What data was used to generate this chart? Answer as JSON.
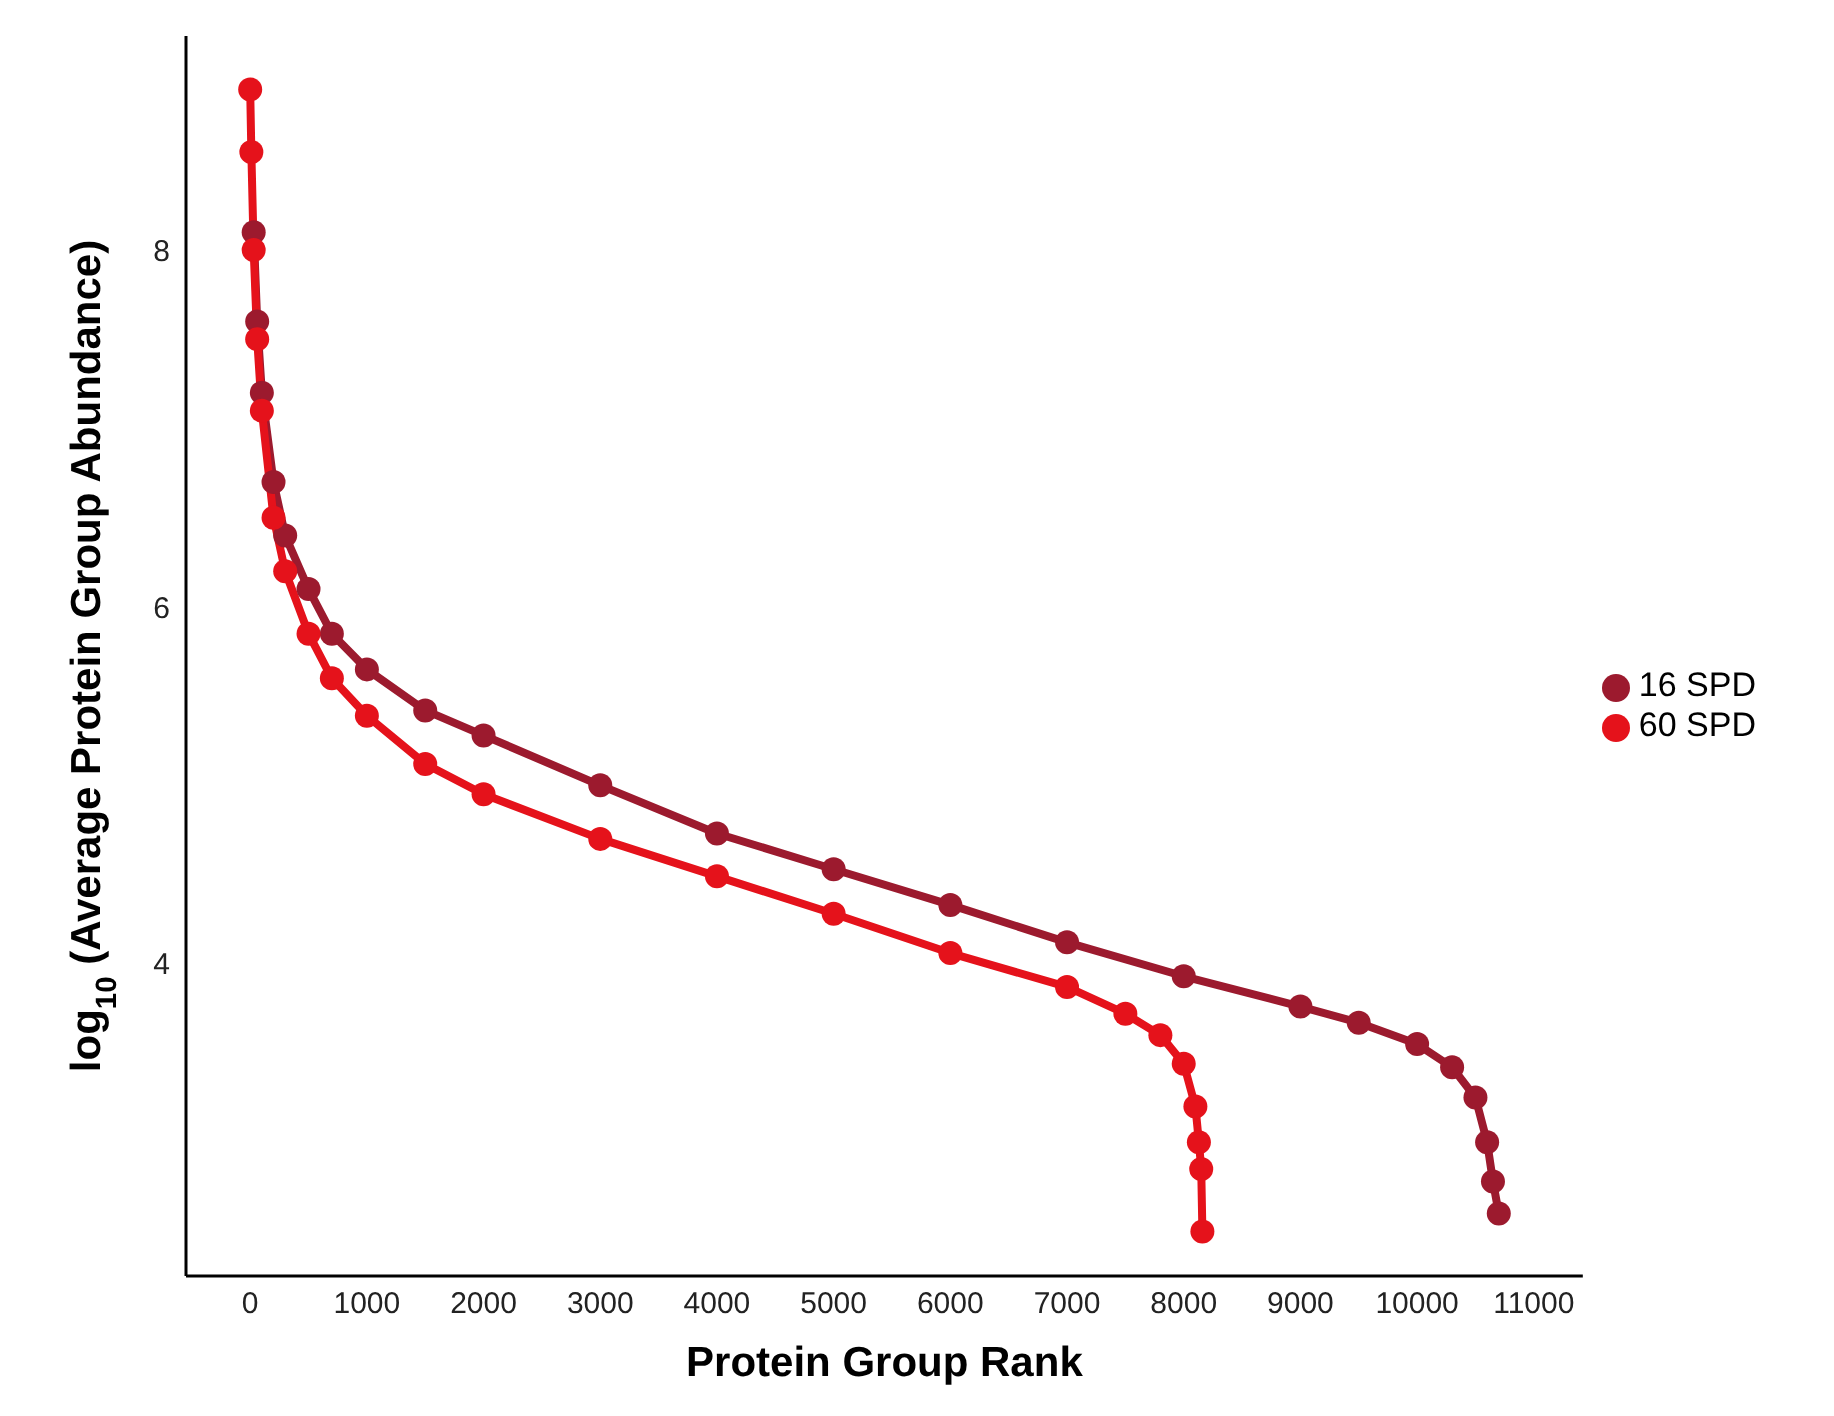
{
  "chart_data": {
    "type": "line",
    "xlabel": "Protein Group Rank",
    "ylabel": "log$_{10}$ (Average Protein Group Abundance)",
    "xlim": [
      -550,
      11420
    ],
    "xticks": [
      0,
      1000,
      2000,
      3000,
      4000,
      5000,
      6000,
      7000,
      8000,
      9000,
      10000,
      11000
    ],
    "ylim": [
      2.25,
      9.2
    ],
    "yticks": [
      4,
      6,
      8
    ],
    "legend": "right",
    "marker": "circle",
    "line_style": "solid",
    "series": [
      {
        "name": "16 SPD",
        "color": "#9c1a2e",
        "x": [
          30,
          60,
          100,
          200,
          300,
          500,
          700,
          1000,
          1500,
          2000,
          3000,
          4000,
          5000,
          6000,
          7000,
          8000,
          9000,
          9500,
          10000,
          10300,
          10500,
          10600,
          10650,
          10700
        ],
        "values": [
          8.1,
          7.6,
          7.2,
          6.7,
          6.4,
          6.1,
          5.85,
          5.65,
          5.42,
          5.28,
          5.0,
          4.73,
          4.53,
          4.33,
          4.12,
          3.93,
          3.76,
          3.67,
          3.55,
          3.42,
          3.25,
          3.0,
          2.78,
          2.6
        ]
      },
      {
        "name": "60 SPD",
        "color": "#e5121b",
        "x": [
          0,
          10,
          30,
          60,
          100,
          200,
          300,
          500,
          700,
          1000,
          1500,
          2000,
          3000,
          4000,
          5000,
          6000,
          7000,
          7500,
          7800,
          8000,
          8100,
          8130,
          8150,
          8160
        ],
        "values": [
          8.9,
          8.55,
          8.0,
          7.5,
          7.1,
          6.5,
          6.2,
          5.85,
          5.6,
          5.39,
          5.12,
          4.95,
          4.7,
          4.49,
          4.28,
          4.06,
          3.87,
          3.72,
          3.6,
          3.44,
          3.2,
          3.0,
          2.85,
          2.5
        ]
      }
    ]
  }
}
